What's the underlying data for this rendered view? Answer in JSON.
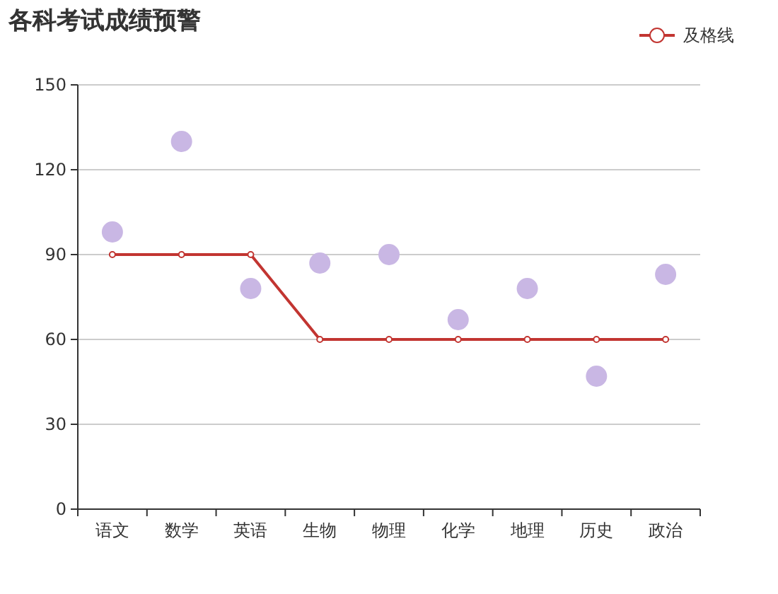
{
  "chart_data": {
    "type": "line",
    "title": "各科考试成绩预警",
    "categories": [
      "语文",
      "数学",
      "英语",
      "生物",
      "物理",
      "化学",
      "地理",
      "历史",
      "政治"
    ],
    "series": [
      {
        "type": "scatter",
        "color": "#c9b7e4",
        "values": [
          98,
          130,
          78,
          87,
          90,
          67,
          78,
          47,
          83
        ]
      },
      {
        "name": "及格线",
        "color": "#c23531",
        "values": [
          90,
          90,
          90,
          60,
          60,
          60,
          60,
          60,
          60
        ]
      }
    ],
    "ylim": [
      0,
      150
    ],
    "yticks": [
      0,
      30,
      60,
      90,
      120,
      150
    ],
    "grid": "y",
    "legend": "top right",
    "marker": "circle"
  }
}
